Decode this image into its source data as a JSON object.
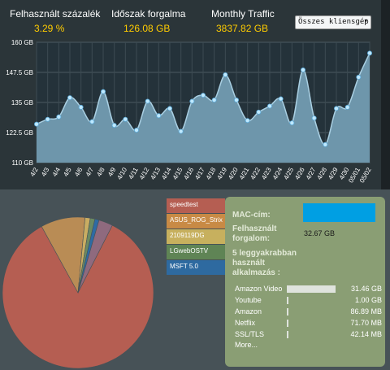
{
  "stats": [
    {
      "label": "Felhasznált százalék",
      "value": "3.29 %"
    },
    {
      "label": "Időszak forgalma",
      "value": "126.08 GB"
    },
    {
      "label": "Monthly Traffic",
      "value": "3837.82 GB"
    }
  ],
  "client_select": {
    "value": "Összes kliensgép"
  },
  "colors": {
    "accent_value": "#ffcc00",
    "chart_fill": "#6e96ab",
    "point": "#bfe9ff",
    "panel": "#8a9e74",
    "mac_box": "#009fe3"
  },
  "chart_data": [
    {
      "type": "area",
      "title": "",
      "xlabel": "",
      "ylabel": "",
      "ylim": [
        110,
        160
      ],
      "y_ticks": [
        "160 GB",
        "147.5 GB",
        "135 GB",
        "122.5 GB",
        "110 GB"
      ],
      "grid": true,
      "categories": [
        "4/2",
        "4/3",
        "4/4",
        "4/5",
        "4/6",
        "4/7",
        "4/8",
        "4/9",
        "4/10",
        "4/11",
        "4/12",
        "4/13",
        "4/14",
        "4/15",
        "4/16",
        "4/17",
        "4/18",
        "4/19",
        "4/20",
        "4/21",
        "4/22",
        "4/23",
        "4/24",
        "4/25",
        "4/26",
        "4/27",
        "4/28",
        "4/29",
        "4/30",
        "05/01",
        "05/02"
      ],
      "values": [
        126,
        128,
        129,
        137,
        133,
        127,
        139.5,
        125.5,
        128,
        123.5,
        135.5,
        129.5,
        132.5,
        123,
        135.5,
        138,
        136,
        146.5,
        136,
        127.5,
        131,
        133.5,
        136.5,
        126.5,
        148.5,
        128.5,
        117.5,
        132.5,
        133,
        145.5,
        155.5
      ]
    },
    {
      "type": "pie",
      "legend": [
        "speedtest",
        "ASUS_ROG_Strix",
        "2109119DG",
        "LGwebOSTV",
        "MSFT 5.0"
      ],
      "series": [
        {
          "name": "speedtest",
          "value": 84.5,
          "color": "#b55e52"
        },
        {
          "name": "ASUS_ROG_Strix",
          "value": 9.5,
          "color": "#b98c55"
        },
        {
          "name": "2109119DG",
          "value": 1.1,
          "color": "#c9ad62"
        },
        {
          "name": "LGwebOSTV",
          "value": 1.0,
          "color": "#6b8a62"
        },
        {
          "name": "MSFT 5.0",
          "value": 0.9,
          "color": "#2e6ba4"
        },
        {
          "name": "",
          "value": 3.0,
          "color": "#8f6a7e"
        }
      ]
    }
  ],
  "legend": [
    {
      "label": "speedtest",
      "color": "#b55e52"
    },
    {
      "label": "ASUS_ROG_Strix",
      "color": "#c88a45"
    },
    {
      "label": "2109119DG",
      "color": "#c7b05e"
    },
    {
      "label": "LGwebOSTV",
      "color": "#5f8455"
    },
    {
      "label": "MSFT 5.0",
      "color": "#2e6aa0"
    }
  ],
  "details": {
    "mac_label": "MAC-cím:",
    "used_label": "Felhasznált forgalom:",
    "used_value": "32.67 GB",
    "apps_label": "5 leggyakrabban használt alkalmazás :",
    "apps": [
      {
        "name": "Amazon Video",
        "value": "31.46 GB",
        "share": 0.96
      },
      {
        "name": "Youtube",
        "value": "1.00 GB",
        "share": 0.03
      },
      {
        "name": "Amazon",
        "value": "86.89 MB",
        "share": 0.003
      },
      {
        "name": "Netflix",
        "value": "71.70 MB",
        "share": 0.002
      },
      {
        "name": "SSL/TLS",
        "value": "42.14 MB",
        "share": 0.001
      }
    ],
    "more_label": "More..."
  }
}
